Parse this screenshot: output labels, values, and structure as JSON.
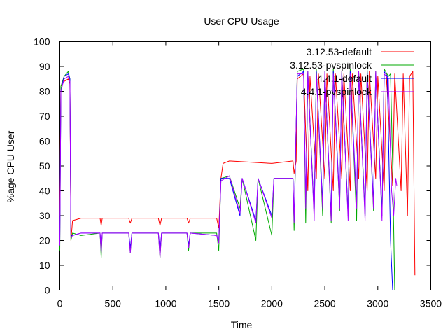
{
  "chart_data": {
    "type": "line",
    "title": "User CPU Usage",
    "xlabel": "Time",
    "ylabel": "%age CPU User",
    "xlim": [
      0,
      3500
    ],
    "ylim": [
      0,
      100
    ],
    "x_ticks": [
      0,
      500,
      1000,
      1500,
      2000,
      2500,
      3000,
      3500
    ],
    "y_ticks": [
      0,
      10,
      20,
      30,
      40,
      50,
      60,
      70,
      80,
      90,
      100
    ],
    "grid": false,
    "legend_position": "top-right",
    "series": [
      {
        "name": "3.12.53-default",
        "color": "#ff0000",
        "points": [
          [
            0,
            30
          ],
          [
            10,
            82
          ],
          [
            40,
            84
          ],
          [
            80,
            85
          ],
          [
            95,
            83
          ],
          [
            105,
            20
          ],
          [
            120,
            28
          ],
          [
            200,
            29
          ],
          [
            380,
            29
          ],
          [
            390,
            26
          ],
          [
            400,
            29
          ],
          [
            650,
            29
          ],
          [
            665,
            27
          ],
          [
            680,
            29
          ],
          [
            930,
            29
          ],
          [
            945,
            26
          ],
          [
            960,
            29
          ],
          [
            1200,
            29
          ],
          [
            1215,
            27
          ],
          [
            1230,
            29
          ],
          [
            1480,
            29
          ],
          [
            1500,
            25
          ],
          [
            1520,
            45
          ],
          [
            1540,
            51
          ],
          [
            1600,
            52
          ],
          [
            2000,
            51
          ],
          [
            2200,
            52
          ],
          [
            2210,
            47
          ],
          [
            2230,
            52
          ],
          [
            2240,
            85
          ],
          [
            2300,
            87
          ],
          [
            2340,
            40
          ],
          [
            2360,
            86
          ],
          [
            2420,
            45
          ],
          [
            2440,
            87
          ],
          [
            2500,
            45
          ],
          [
            2520,
            87
          ],
          [
            2580,
            40
          ],
          [
            2600,
            87
          ],
          [
            2660,
            45
          ],
          [
            2680,
            87
          ],
          [
            2740,
            40
          ],
          [
            2760,
            87
          ],
          [
            2820,
            45
          ],
          [
            2840,
            87
          ],
          [
            2900,
            40
          ],
          [
            2920,
            88
          ],
          [
            2980,
            45
          ],
          [
            3000,
            86
          ],
          [
            3060,
            40
          ],
          [
            3080,
            87
          ],
          [
            3140,
            42
          ],
          [
            3160,
            87
          ],
          [
            3220,
            40
          ],
          [
            3240,
            87
          ],
          [
            3280,
            30
          ],
          [
            3300,
            86
          ],
          [
            3330,
            88
          ],
          [
            3350,
            6
          ]
        ]
      },
      {
        "name": "3.12.53-pvspinlock",
        "color": "#00aa00",
        "points": [
          [
            0,
            16
          ],
          [
            10,
            82
          ],
          [
            40,
            86
          ],
          [
            80,
            88
          ],
          [
            95,
            85
          ],
          [
            105,
            20
          ],
          [
            120,
            23
          ],
          [
            200,
            22
          ],
          [
            380,
            23
          ],
          [
            390,
            13
          ],
          [
            400,
            23
          ],
          [
            650,
            23
          ],
          [
            665,
            15
          ],
          [
            680,
            23
          ],
          [
            930,
            23
          ],
          [
            945,
            13
          ],
          [
            960,
            23
          ],
          [
            1200,
            23
          ],
          [
            1215,
            16
          ],
          [
            1230,
            23
          ],
          [
            1480,
            23
          ],
          [
            1500,
            16
          ],
          [
            1520,
            45
          ],
          [
            1600,
            46
          ],
          [
            1700,
            33
          ],
          [
            1720,
            45
          ],
          [
            1850,
            20
          ],
          [
            1870,
            45
          ],
          [
            2000,
            22
          ],
          [
            2020,
            45
          ],
          [
            2200,
            45
          ],
          [
            2210,
            24
          ],
          [
            2240,
            88
          ],
          [
            2300,
            89
          ],
          [
            2320,
            27
          ],
          [
            2340,
            88
          ],
          [
            2400,
            30
          ],
          [
            2420,
            89
          ],
          [
            2480,
            30
          ],
          [
            2500,
            88
          ],
          [
            2560,
            27
          ],
          [
            2580,
            89
          ],
          [
            2640,
            32
          ],
          [
            2660,
            88
          ],
          [
            2720,
            30
          ],
          [
            2740,
            89
          ],
          [
            2800,
            28
          ],
          [
            2820,
            88
          ],
          [
            2880,
            30
          ],
          [
            2900,
            89
          ],
          [
            2960,
            32
          ],
          [
            2980,
            88
          ],
          [
            3040,
            30
          ],
          [
            3060,
            89
          ],
          [
            3100,
            86
          ],
          [
            3120,
            87
          ],
          [
            3140,
            50
          ],
          [
            3160,
            0
          ],
          [
            3180,
            0
          ],
          [
            3200,
            0
          ]
        ]
      },
      {
        "name": "4.4.1-default",
        "color": "#0000ff",
        "points": [
          [
            0,
            20
          ],
          [
            10,
            80
          ],
          [
            40,
            86
          ],
          [
            80,
            87
          ],
          [
            95,
            85
          ],
          [
            105,
            22
          ],
          [
            120,
            22
          ],
          [
            200,
            23
          ],
          [
            380,
            23
          ],
          [
            390,
            16
          ],
          [
            400,
            23
          ],
          [
            650,
            23
          ],
          [
            665,
            17
          ],
          [
            680,
            23
          ],
          [
            930,
            23
          ],
          [
            945,
            16
          ],
          [
            960,
            23
          ],
          [
            1200,
            23
          ],
          [
            1215,
            18
          ],
          [
            1230,
            23
          ],
          [
            1480,
            22
          ],
          [
            1500,
            20
          ],
          [
            1520,
            45
          ],
          [
            1600,
            45
          ],
          [
            1700,
            30
          ],
          [
            1720,
            45
          ],
          [
            1850,
            28
          ],
          [
            1870,
            45
          ],
          [
            2000,
            30
          ],
          [
            2020,
            45
          ],
          [
            2200,
            45
          ],
          [
            2210,
            28
          ],
          [
            2240,
            86
          ],
          [
            2300,
            88
          ],
          [
            2320,
            35
          ],
          [
            2340,
            87
          ],
          [
            2400,
            30
          ],
          [
            2420,
            88
          ],
          [
            2480,
            35
          ],
          [
            2500,
            87
          ],
          [
            2560,
            30
          ],
          [
            2580,
            88
          ],
          [
            2640,
            35
          ],
          [
            2660,
            87
          ],
          [
            2720,
            30
          ],
          [
            2740,
            88
          ],
          [
            2800,
            35
          ],
          [
            2820,
            87
          ],
          [
            2880,
            30
          ],
          [
            2900,
            88
          ],
          [
            2960,
            35
          ],
          [
            2980,
            87
          ],
          [
            3040,
            30
          ],
          [
            3060,
            88
          ],
          [
            3090,
            86
          ],
          [
            3120,
            20
          ],
          [
            3140,
            0
          ],
          [
            3160,
            0
          ]
        ]
      },
      {
        "name": "4.4.1-pvspinlock",
        "color": "#aa00ff",
        "points": [
          [
            0,
            18
          ],
          [
            10,
            80
          ],
          [
            40,
            85
          ],
          [
            80,
            86
          ],
          [
            95,
            84
          ],
          [
            105,
            21
          ],
          [
            120,
            22
          ],
          [
            200,
            23
          ],
          [
            380,
            23
          ],
          [
            390,
            15
          ],
          [
            400,
            23
          ],
          [
            650,
            23
          ],
          [
            665,
            15
          ],
          [
            680,
            23
          ],
          [
            930,
            23
          ],
          [
            945,
            13
          ],
          [
            960,
            23
          ],
          [
            1200,
            23
          ],
          [
            1215,
            17
          ],
          [
            1230,
            23
          ],
          [
            1480,
            22
          ],
          [
            1500,
            19
          ],
          [
            1520,
            44
          ],
          [
            1600,
            46
          ],
          [
            1700,
            31
          ],
          [
            1720,
            45
          ],
          [
            1850,
            27
          ],
          [
            1870,
            45
          ],
          [
            2000,
            29
          ],
          [
            2020,
            45
          ],
          [
            2200,
            45
          ],
          [
            2210,
            27
          ],
          [
            2240,
            87
          ],
          [
            2300,
            87
          ],
          [
            2320,
            33
          ],
          [
            2340,
            88
          ],
          [
            2400,
            28
          ],
          [
            2420,
            87
          ],
          [
            2480,
            33
          ],
          [
            2500,
            88
          ],
          [
            2560,
            28
          ],
          [
            2580,
            87
          ],
          [
            2640,
            33
          ],
          [
            2660,
            88
          ],
          [
            2720,
            28
          ],
          [
            2740,
            87
          ],
          [
            2800,
            33
          ],
          [
            2820,
            88
          ],
          [
            2880,
            28
          ],
          [
            2900,
            87
          ],
          [
            2960,
            33
          ],
          [
            2980,
            88
          ],
          [
            3040,
            28
          ],
          [
            3060,
            87
          ],
          [
            3100,
            85
          ],
          [
            3130,
            40
          ],
          [
            3150,
            30
          ],
          [
            3170,
            45
          ],
          [
            3180,
            42
          ]
        ]
      }
    ]
  }
}
